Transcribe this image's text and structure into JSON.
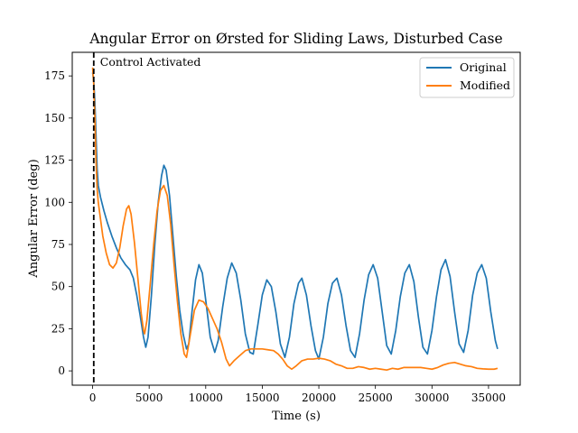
{
  "chart_data": {
    "type": "line",
    "title": "Angular Error on Ørsted for Sliding Laws, Disturbed Case",
    "xlabel": "Time (s)",
    "ylabel": "Angular Error (deg)",
    "xlim": [
      -1800,
      37800
    ],
    "ylim": [
      -8.5,
      189
    ],
    "xticks": [
      0,
      5000,
      10000,
      15000,
      20000,
      25000,
      30000,
      35000
    ],
    "yticks": [
      0,
      25,
      50,
      75,
      100,
      125,
      150,
      175
    ],
    "grid": false,
    "legend_position": "top-right",
    "annotation": {
      "text": "Control Activated",
      "x": 100,
      "line_style": "dashed",
      "color": "#000000"
    },
    "series": [
      {
        "name": "Original",
        "color": "#1f77b4",
        "points": [
          [
            0,
            177
          ],
          [
            100,
            172
          ],
          [
            200,
            160
          ],
          [
            300,
            140
          ],
          [
            400,
            120
          ],
          [
            500,
            110
          ],
          [
            700,
            103
          ],
          [
            1000,
            95
          ],
          [
            1300,
            88
          ],
          [
            1700,
            80
          ],
          [
            2100,
            73
          ],
          [
            2500,
            67
          ],
          [
            2900,
            63
          ],
          [
            3300,
            60
          ],
          [
            3600,
            55
          ],
          [
            3900,
            45
          ],
          [
            4200,
            33
          ],
          [
            4500,
            20
          ],
          [
            4700,
            14
          ],
          [
            4900,
            20
          ],
          [
            5200,
            45
          ],
          [
            5500,
            75
          ],
          [
            5800,
            100
          ],
          [
            6100,
            116
          ],
          [
            6300,
            122
          ],
          [
            6500,
            119
          ],
          [
            6800,
            104
          ],
          [
            7100,
            80
          ],
          [
            7400,
            56
          ],
          [
            7700,
            36
          ],
          [
            8000,
            22
          ],
          [
            8300,
            13
          ],
          [
            8500,
            16
          ],
          [
            8800,
            36
          ],
          [
            9100,
            54
          ],
          [
            9400,
            63
          ],
          [
            9700,
            58
          ],
          [
            10000,
            42
          ],
          [
            10400,
            20
          ],
          [
            10800,
            11
          ],
          [
            11100,
            18
          ],
          [
            11500,
            38
          ],
          [
            11900,
            55
          ],
          [
            12300,
            64
          ],
          [
            12700,
            58
          ],
          [
            13100,
            42
          ],
          [
            13500,
            22
          ],
          [
            13900,
            11
          ],
          [
            14200,
            10
          ],
          [
            14600,
            27
          ],
          [
            15000,
            45
          ],
          [
            15400,
            54
          ],
          [
            15800,
            50
          ],
          [
            16200,
            35
          ],
          [
            16600,
            16
          ],
          [
            17000,
            8
          ],
          [
            17400,
            20
          ],
          [
            17800,
            40
          ],
          [
            18200,
            52
          ],
          [
            18500,
            55
          ],
          [
            18900,
            45
          ],
          [
            19300,
            27
          ],
          [
            19700,
            12
          ],
          [
            20000,
            7
          ],
          [
            20400,
            20
          ],
          [
            20800,
            40
          ],
          [
            21200,
            52
          ],
          [
            21600,
            55
          ],
          [
            22000,
            45
          ],
          [
            22400,
            27
          ],
          [
            22800,
            12
          ],
          [
            23200,
            8
          ],
          [
            23600,
            22
          ],
          [
            24000,
            42
          ],
          [
            24400,
            57
          ],
          [
            24800,
            63
          ],
          [
            25200,
            55
          ],
          [
            25600,
            35
          ],
          [
            26000,
            15
          ],
          [
            26400,
            10
          ],
          [
            26800,
            24
          ],
          [
            27200,
            44
          ],
          [
            27600,
            58
          ],
          [
            28000,
            63
          ],
          [
            28400,
            53
          ],
          [
            28800,
            32
          ],
          [
            29200,
            14
          ],
          [
            29600,
            10
          ],
          [
            30000,
            24
          ],
          [
            30400,
            44
          ],
          [
            30800,
            60
          ],
          [
            31200,
            66
          ],
          [
            31600,
            56
          ],
          [
            32000,
            35
          ],
          [
            32400,
            16
          ],
          [
            32800,
            11
          ],
          [
            33200,
            24
          ],
          [
            33600,
            45
          ],
          [
            34000,
            58
          ],
          [
            34400,
            63
          ],
          [
            34800,
            55
          ],
          [
            35200,
            35
          ],
          [
            35600,
            18
          ],
          [
            35800,
            13
          ]
        ]
      },
      {
        "name": "Modified",
        "color": "#ff7f0e",
        "points": [
          [
            0,
            180
          ],
          [
            100,
            170
          ],
          [
            200,
            150
          ],
          [
            300,
            125
          ],
          [
            400,
            108
          ],
          [
            500,
            100
          ],
          [
            700,
            90
          ],
          [
            900,
            80
          ],
          [
            1200,
            70
          ],
          [
            1500,
            63
          ],
          [
            1800,
            61
          ],
          [
            2100,
            64
          ],
          [
            2400,
            73
          ],
          [
            2700,
            86
          ],
          [
            3000,
            96
          ],
          [
            3200,
            98
          ],
          [
            3400,
            93
          ],
          [
            3700,
            76
          ],
          [
            4000,
            55
          ],
          [
            4300,
            34
          ],
          [
            4500,
            24
          ],
          [
            4600,
            22
          ],
          [
            4800,
            30
          ],
          [
            5100,
            52
          ],
          [
            5400,
            75
          ],
          [
            5700,
            95
          ],
          [
            6000,
            107
          ],
          [
            6300,
            110
          ],
          [
            6600,
            104
          ],
          [
            6900,
            87
          ],
          [
            7200,
            63
          ],
          [
            7500,
            41
          ],
          [
            7800,
            22
          ],
          [
            8100,
            10
          ],
          [
            8300,
            8
          ],
          [
            8600,
            20
          ],
          [
            9000,
            36
          ],
          [
            9400,
            42
          ],
          [
            9800,
            41
          ],
          [
            10200,
            37
          ],
          [
            10600,
            31
          ],
          [
            11000,
            25
          ],
          [
            11400,
            17
          ],
          [
            11800,
            7
          ],
          [
            12100,
            3
          ],
          [
            12500,
            6
          ],
          [
            13000,
            9
          ],
          [
            13500,
            12
          ],
          [
            14000,
            13
          ],
          [
            14500,
            13
          ],
          [
            15000,
            13
          ],
          [
            15500,
            12.5
          ],
          [
            16000,
            12
          ],
          [
            16400,
            10
          ],
          [
            16800,
            7
          ],
          [
            17200,
            3
          ],
          [
            17600,
            1
          ],
          [
            18000,
            3
          ],
          [
            18500,
            6
          ],
          [
            19000,
            7
          ],
          [
            19500,
            7
          ],
          [
            20000,
            7.5
          ],
          [
            20500,
            7
          ],
          [
            21000,
            6
          ],
          [
            21500,
            4
          ],
          [
            22000,
            3
          ],
          [
            22500,
            1.5
          ],
          [
            23000,
            1.5
          ],
          [
            23500,
            2.5
          ],
          [
            24000,
            2
          ],
          [
            24500,
            1
          ],
          [
            25000,
            1.5
          ],
          [
            25500,
            1
          ],
          [
            26000,
            0.5
          ],
          [
            26500,
            1.5
          ],
          [
            27000,
            1
          ],
          [
            27500,
            2
          ],
          [
            28000,
            2
          ],
          [
            28500,
            2
          ],
          [
            29000,
            2
          ],
          [
            29500,
            1.5
          ],
          [
            30000,
            1
          ],
          [
            30500,
            2
          ],
          [
            31000,
            3.5
          ],
          [
            31500,
            4.5
          ],
          [
            32000,
            5
          ],
          [
            32500,
            4
          ],
          [
            33000,
            3
          ],
          [
            33500,
            2.5
          ],
          [
            34000,
            1.5
          ],
          [
            34500,
            1.2
          ],
          [
            35000,
            1
          ],
          [
            35500,
            1
          ],
          [
            35800,
            1.5
          ]
        ]
      }
    ]
  }
}
